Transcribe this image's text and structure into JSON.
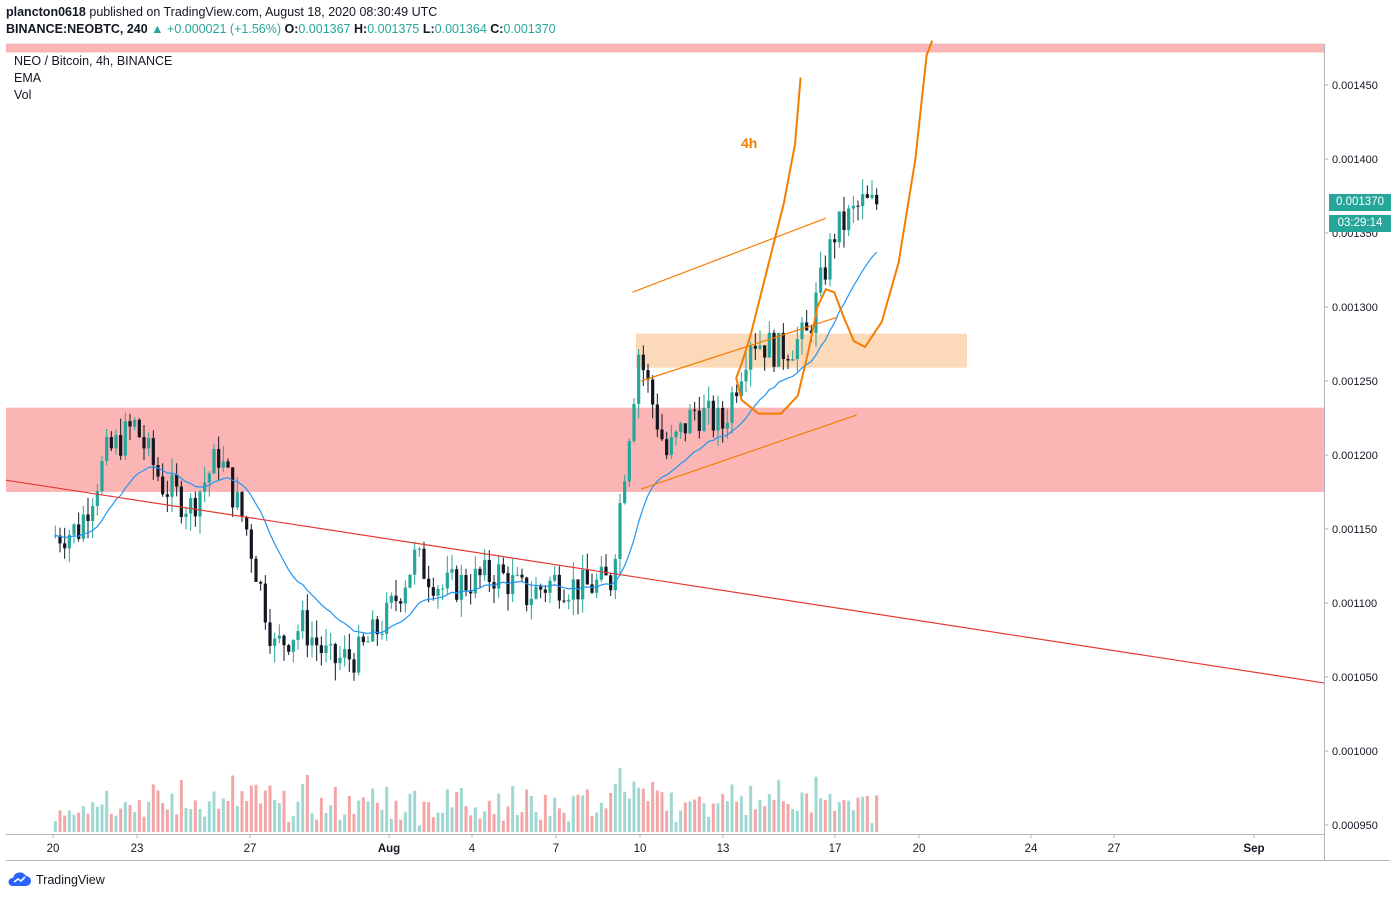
{
  "header": {
    "username": "plancton0618",
    "published_text": "published on TradingView.com, August 18, 2020 08:30:49 UTC",
    "symbol": "BINANCE:NEOBTC, 240",
    "change": "▲ +0.000021 (+1.56%)",
    "o_label": "O:",
    "o_value": "0.001367",
    "h_label": "H:",
    "h_value": "0.001375",
    "l_label": "L:",
    "l_value": "0.001364",
    "c_label": "C:",
    "c_value": "0.001370"
  },
  "legend": {
    "title": "NEO / Bitcoin, 4h, BINANCE",
    "ema": "EMA",
    "vol": "Vol"
  },
  "price_axis": {
    "ticks": [
      "0.001450",
      "0.001400",
      "0.001350",
      "0.001300",
      "0.001250",
      "0.001200",
      "0.001150",
      "0.001100",
      "0.001050",
      "0.001000",
      "0.000950"
    ],
    "last_price": "0.001370",
    "countdown": "03:29:14"
  },
  "time_axis": {
    "labels": [
      "20",
      "23",
      "27",
      "Aug",
      "4",
      "7",
      "10",
      "13",
      "17",
      "20",
      "24",
      "27",
      "Sep"
    ]
  },
  "annotation": {
    "label": "4h"
  },
  "footer": {
    "brand": "TradingView"
  },
  "colors": {
    "up": "#26a69a",
    "down": "#131722",
    "ema": "#2196f3",
    "trendline": "#e53935",
    "resistance": "#fba8a8",
    "annotation": "#f57c00",
    "zone": "#fbd3ad"
  },
  "chart_data": {
    "type": "candlestick",
    "title": "NEO / Bitcoin, 4h, BINANCE",
    "interval": "4h",
    "ylim": [
      0.000945,
      0.00148
    ],
    "x_labels": [
      "20",
      "23",
      "27",
      "Aug",
      "4",
      "7",
      "10",
      "13",
      "17",
      "20",
      "24",
      "27",
      "Sep"
    ],
    "anchor_points": [
      {
        "date": "Jul 20",
        "close": 0.001145
      },
      {
        "date": "Jul 21",
        "close": 0.00115
      },
      {
        "date": "Jul 22",
        "close": 0.0012
      },
      {
        "date": "Jul 23",
        "close": 0.00122
      },
      {
        "date": "Jul 24",
        "close": 0.00118
      },
      {
        "date": "Jul 25",
        "close": 0.001165
      },
      {
        "date": "Jul 26",
        "close": 0.0012
      },
      {
        "date": "Jul 27",
        "close": 0.00115
      },
      {
        "date": "Jul 28",
        "close": 0.00107
      },
      {
        "date": "Jul 29",
        "close": 0.001085
      },
      {
        "date": "Jul 30",
        "close": 0.00106
      },
      {
        "date": "Jul 31",
        "close": 0.001065
      },
      {
        "date": "Aug 1",
        "close": 0.00109
      },
      {
        "date": "Aug 2",
        "close": 0.00113
      },
      {
        "date": "Aug 3",
        "close": 0.00111
      },
      {
        "date": "Aug 4",
        "close": 0.001115
      },
      {
        "date": "Aug 5",
        "close": 0.00112
      },
      {
        "date": "Aug 6",
        "close": 0.001105
      },
      {
        "date": "Aug 7",
        "close": 0.001115
      },
      {
        "date": "Aug 8",
        "close": 0.00111
      },
      {
        "date": "Aug 9",
        "close": 0.001115
      },
      {
        "date": "Aug 10",
        "close": 0.00127
      },
      {
        "date": "Aug 11",
        "close": 0.0012
      },
      {
        "date": "Aug 12",
        "close": 0.00123
      },
      {
        "date": "Aug 13",
        "close": 0.00122
      },
      {
        "date": "Aug 14",
        "close": 0.00128
      },
      {
        "date": "Aug 15",
        "close": 0.00127
      },
      {
        "date": "Aug 16",
        "close": 0.00128
      },
      {
        "date": "Aug 17",
        "close": 0.00135
      },
      {
        "date": "Aug 18",
        "close": 0.00137
      }
    ],
    "zones": [
      {
        "name": "resistance",
        "from": 0.001175,
        "to": 0.001232
      },
      {
        "name": "support",
        "from": 0.001259,
        "to": 0.001282
      },
      {
        "name": "top",
        "from": 0.001472,
        "to": 0.00148
      }
    ]
  }
}
